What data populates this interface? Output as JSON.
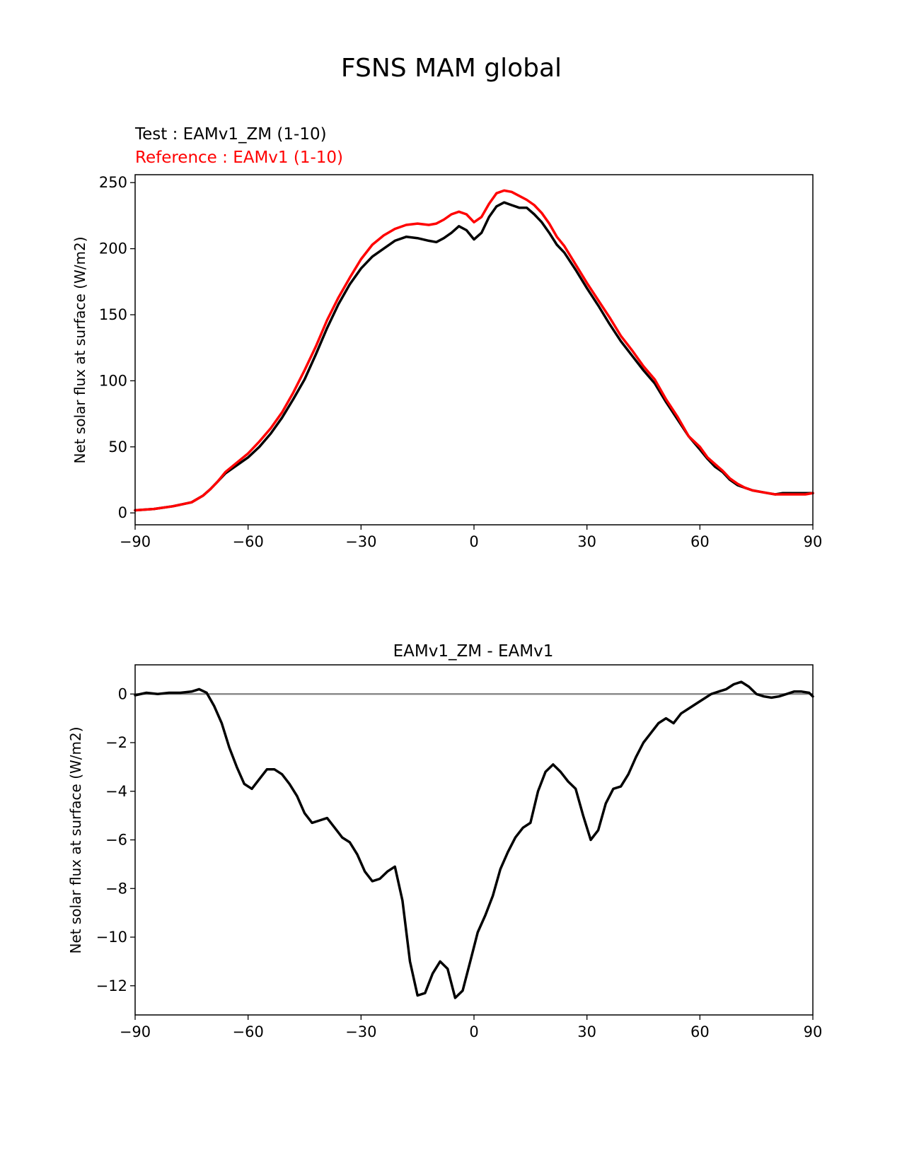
{
  "figure": {
    "title": "FSNS MAM global"
  },
  "chart_data": [
    {
      "type": "line",
      "test_label": "Test : EAMv1_ZM (1-10)",
      "reference_label": "Reference : EAMv1 (1-10)",
      "xlabel": "",
      "ylabel": "Net solar flux at surface (W/m2)",
      "xlim": [
        -90,
        90
      ],
      "ylim": [
        -9,
        256
      ],
      "xticks": [
        -90,
        -60,
        -30,
        0,
        30,
        60,
        90
      ],
      "yticks": [
        0,
        50,
        100,
        150,
        200,
        250
      ],
      "colors": {
        "test": "#000000",
        "reference": "#ff0000"
      },
      "series": [
        {
          "name": "Test : EAMv1_ZM (1-10)",
          "color": "#000000",
          "x": [
            -90,
            -85,
            -80,
            -75,
            -72,
            -70,
            -68,
            -66,
            -63,
            -60,
            -57,
            -54,
            -51,
            -48,
            -45,
            -42,
            -39,
            -36,
            -33,
            -30,
            -27,
            -24,
            -21,
            -18,
            -15,
            -12,
            -10,
            -8,
            -6,
            -4,
            -2,
            0,
            2,
            4,
            6,
            8,
            10,
            12,
            14,
            16,
            18,
            20,
            22,
            24,
            27,
            30,
            33,
            36,
            39,
            42,
            45,
            48,
            51,
            54,
            57,
            60,
            62,
            64,
            66,
            68,
            70,
            72,
            74,
            76,
            78,
            80,
            82,
            84,
            86,
            88,
            90
          ],
          "y": [
            2,
            3,
            5,
            8,
            13,
            18,
            24,
            30,
            36,
            42,
            50,
            60,
            72,
            86,
            101,
            120,
            140,
            158,
            173,
            185,
            194,
            200,
            206,
            209,
            208,
            206,
            205,
            208,
            212,
            217,
            214,
            207,
            212,
            224,
            232,
            235,
            233,
            231,
            231,
            226,
            220,
            212,
            203,
            197,
            184,
            170,
            157,
            143,
            130,
            119,
            108,
            98,
            84,
            71,
            58,
            48,
            41,
            35,
            31,
            25,
            21,
            19,
            17,
            16,
            15,
            14,
            15,
            15,
            15,
            15,
            15
          ]
        },
        {
          "name": "Reference : EAMv1 (1-10)",
          "color": "#ff0000",
          "x": [
            -90,
            -85,
            -80,
            -75,
            -72,
            -70,
            -68,
            -66,
            -63,
            -60,
            -57,
            -54,
            -51,
            -48,
            -45,
            -42,
            -39,
            -36,
            -33,
            -30,
            -27,
            -24,
            -21,
            -18,
            -15,
            -12,
            -10,
            -8,
            -6,
            -4,
            -2,
            0,
            2,
            4,
            6,
            8,
            10,
            12,
            14,
            16,
            18,
            20,
            22,
            24,
            27,
            30,
            33,
            36,
            39,
            42,
            45,
            48,
            51,
            54,
            57,
            60,
            62,
            64,
            66,
            68,
            70,
            72,
            74,
            76,
            78,
            80,
            82,
            84,
            86,
            88,
            90
          ],
          "y": [
            2,
            3,
            5,
            8,
            13,
            18,
            24,
            31,
            38,
            45,
            54,
            64,
            76,
            91,
            108,
            126,
            146,
            163,
            178,
            192,
            203,
            210,
            215,
            218,
            219,
            218,
            219,
            222,
            226,
            228,
            226,
            220,
            224,
            234,
            242,
            244,
            243,
            240,
            237,
            233,
            227,
            219,
            209,
            202,
            188,
            174,
            161,
            148,
            134,
            123,
            111,
            101,
            86,
            73,
            58,
            50,
            42,
            37,
            32,
            26,
            22,
            19,
            17,
            16,
            15,
            14,
            14,
            14,
            14,
            14,
            15
          ]
        }
      ]
    },
    {
      "type": "line",
      "title": "EAMv1_ZM - EAMv1",
      "xlabel": "",
      "ylabel": "Net solar flux at surface (W/m2)",
      "xlim": [
        -90,
        90
      ],
      "ylim": [
        -13.2,
        1.2
      ],
      "xticks": [
        -90,
        -60,
        -30,
        0,
        30,
        60,
        90
      ],
      "yticks": [
        0,
        -2,
        -4,
        -6,
        -8,
        -10,
        -12
      ],
      "zero_line": {
        "y": 0,
        "color": "#808080"
      },
      "series": [
        {
          "name": "EAMv1_ZM - EAMv1",
          "color": "#000000",
          "x": [
            -90,
            -87,
            -84,
            -81,
            -78,
            -75,
            -73,
            -71,
            -69,
            -67,
            -65,
            -63,
            -61,
            -59,
            -57,
            -55,
            -53,
            -51,
            -49,
            -47,
            -45,
            -43,
            -41,
            -39,
            -37,
            -35,
            -33,
            -31,
            -29,
            -27,
            -25,
            -23,
            -21,
            -19,
            -17,
            -15,
            -13,
            -11,
            -9,
            -7,
            -5,
            -3,
            -1,
            1,
            3,
            5,
            7,
            9,
            11,
            13,
            15,
            17,
            19,
            21,
            23,
            25,
            27,
            29,
            31,
            33,
            35,
            37,
            39,
            41,
            43,
            45,
            47,
            49,
            51,
            53,
            55,
            57,
            59,
            61,
            63,
            65,
            67,
            69,
            71,
            73,
            75,
            77,
            79,
            81,
            83,
            85,
            87,
            89,
            90
          ],
          "y": [
            -0.05,
            0.05,
            0.0,
            0.05,
            0.05,
            0.1,
            0.2,
            0.05,
            -0.5,
            -1.2,
            -2.2,
            -3.0,
            -3.7,
            -3.9,
            -3.5,
            -3.1,
            -3.1,
            -3.3,
            -3.7,
            -4.2,
            -4.9,
            -5.3,
            -5.2,
            -5.1,
            -5.5,
            -5.9,
            -6.1,
            -6.6,
            -7.3,
            -7.7,
            -7.6,
            -7.3,
            -7.1,
            -8.5,
            -11.0,
            -12.4,
            -12.3,
            -11.5,
            -11.0,
            -11.3,
            -12.5,
            -12.2,
            -11.0,
            -9.8,
            -9.1,
            -8.3,
            -7.2,
            -6.5,
            -5.9,
            -5.5,
            -5.3,
            -4.0,
            -3.2,
            -2.9,
            -3.2,
            -3.6,
            -3.9,
            -5.0,
            -6.0,
            -5.6,
            -4.5,
            -3.9,
            -3.8,
            -3.3,
            -2.6,
            -2.0,
            -1.6,
            -1.2,
            -1.0,
            -1.2,
            -0.8,
            -0.6,
            -0.4,
            -0.2,
            0.0,
            0.1,
            0.2,
            0.4,
            0.5,
            0.3,
            0.0,
            -0.1,
            -0.15,
            -0.1,
            0.0,
            0.1,
            0.1,
            0.05,
            -0.1
          ]
        }
      ]
    }
  ]
}
